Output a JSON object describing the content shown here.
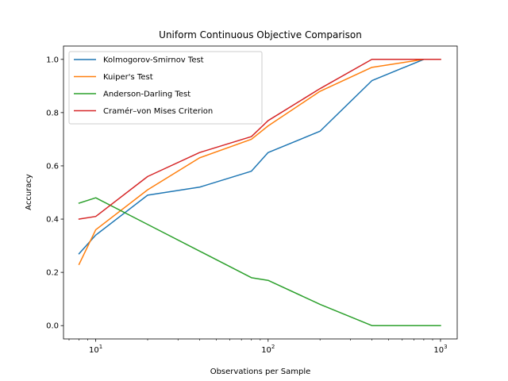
{
  "chart_data": {
    "type": "line",
    "title": "Uniform Continuous Objective Comparison",
    "xlabel": "Observations per Sample",
    "ylabel": "Accuracy",
    "xscale": "log",
    "xlim": [
      6.5,
      1250
    ],
    "ylim": [
      -0.05,
      1.05
    ],
    "x_ticks": [
      {
        "value": 10,
        "base": "10",
        "exp": "1"
      },
      {
        "value": 100,
        "base": "10",
        "exp": "2"
      },
      {
        "value": 1000,
        "base": "10",
        "exp": "3"
      }
    ],
    "y_ticks": [
      {
        "value": 0.0,
        "label": "0.0"
      },
      {
        "value": 0.2,
        "label": "0.2"
      },
      {
        "value": 0.4,
        "label": "0.4"
      },
      {
        "value": 0.6,
        "label": "0.6"
      },
      {
        "value": 0.8,
        "label": "0.8"
      },
      {
        "value": 1.0,
        "label": "1.0"
      }
    ],
    "grid": false,
    "legend_position": "top-left",
    "series": [
      {
        "name": "Kolmogorov-Smirnov Test",
        "color": "#1f77b4",
        "x": [
          8,
          10,
          20,
          40,
          80,
          100,
          200,
          400,
          800,
          1000
        ],
        "y": [
          0.27,
          0.34,
          0.49,
          0.52,
          0.58,
          0.65,
          0.73,
          0.92,
          1.0,
          1.0
        ]
      },
      {
        "name": "Kuiper's Test",
        "color": "#ff7f0e",
        "x": [
          8,
          10,
          20,
          40,
          80,
          100,
          200,
          400,
          800,
          1000
        ],
        "y": [
          0.23,
          0.36,
          0.51,
          0.63,
          0.7,
          0.75,
          0.88,
          0.97,
          1.0,
          1.0
        ]
      },
      {
        "name": "Anderson-Darling Test",
        "color": "#2ca02c",
        "x": [
          8,
          10,
          20,
          40,
          80,
          100,
          200,
          400,
          800,
          1000
        ],
        "y": [
          0.46,
          0.48,
          0.38,
          0.28,
          0.18,
          0.17,
          0.08,
          0.0,
          0.0,
          0.0
        ]
      },
      {
        "name": "Cramér–von Mises Criterion",
        "color": "#d62728",
        "x": [
          8,
          10,
          20,
          40,
          80,
          100,
          200,
          400,
          800,
          1000
        ],
        "y": [
          0.4,
          0.41,
          0.56,
          0.65,
          0.71,
          0.77,
          0.89,
          1.0,
          1.0,
          1.0
        ]
      }
    ]
  }
}
